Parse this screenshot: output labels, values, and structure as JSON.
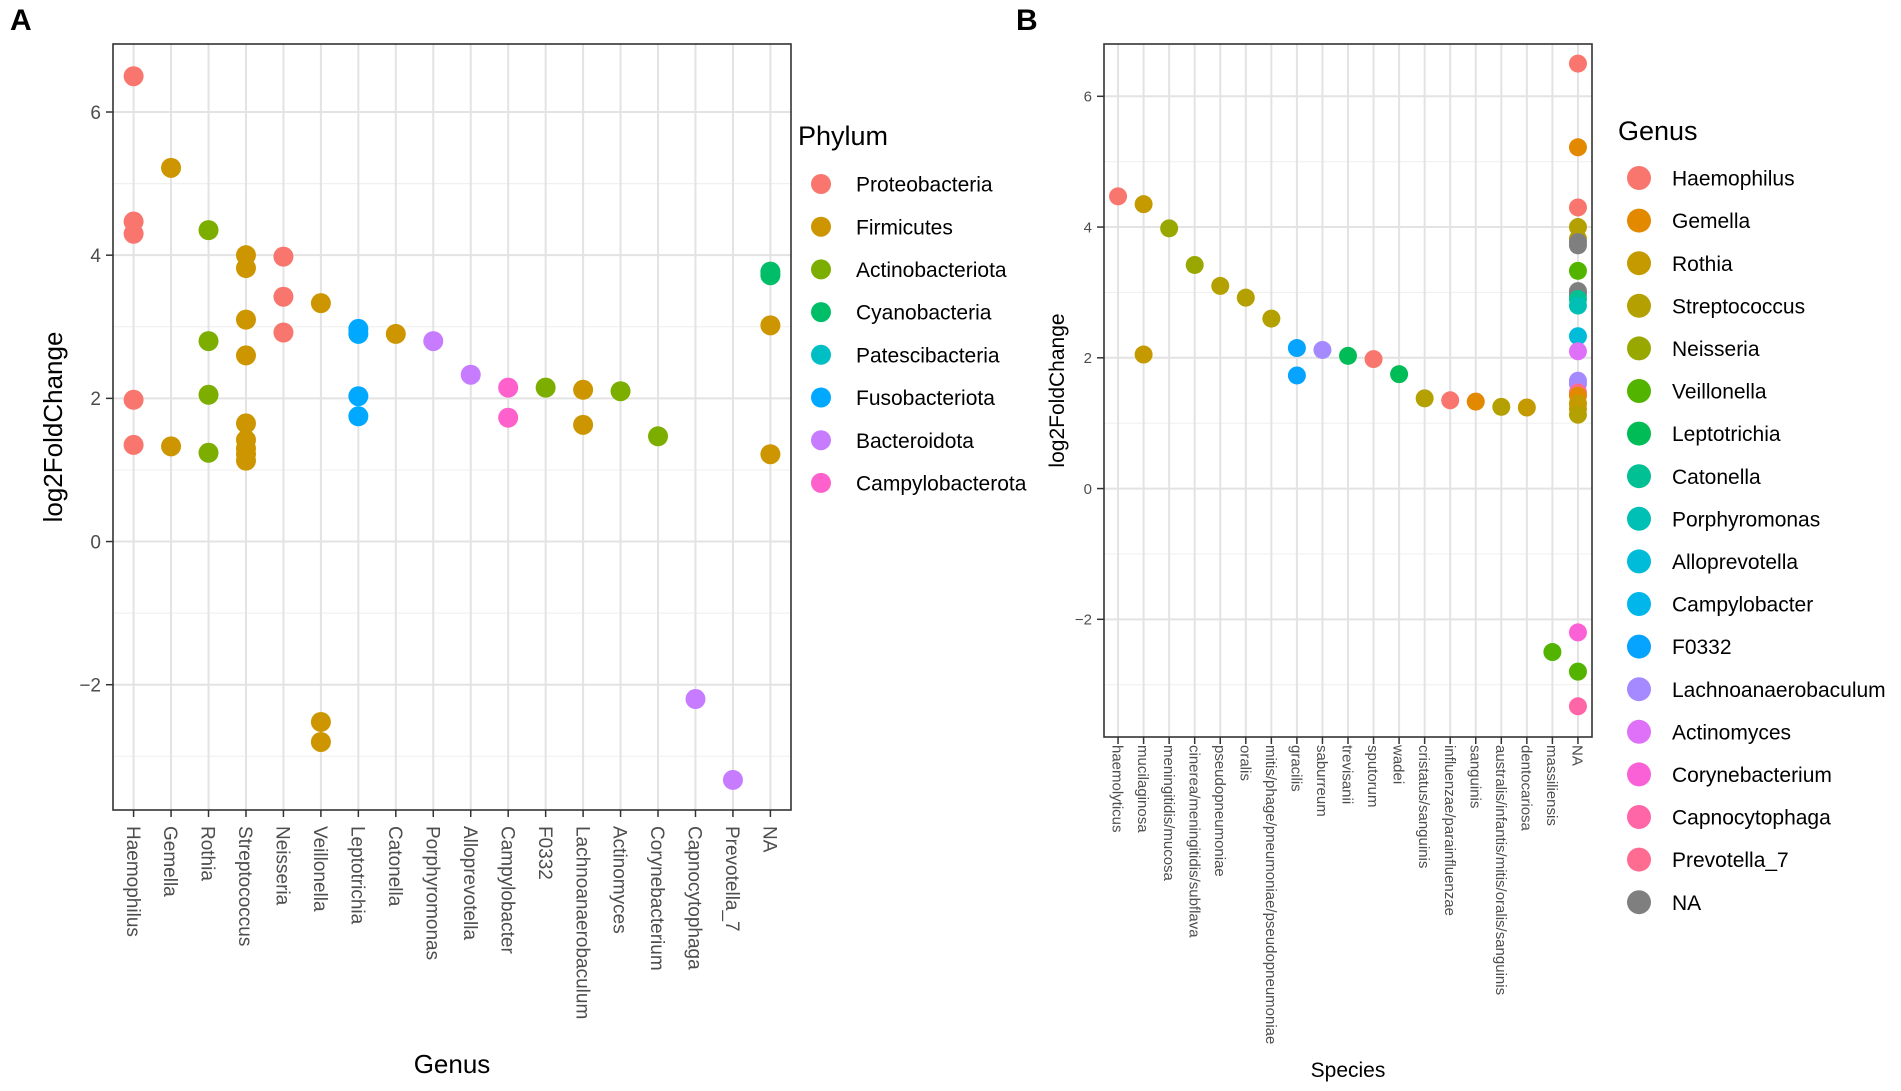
{
  "chart_data": [
    {
      "panel": "A",
      "type": "scatter",
      "xlabel": "Genus",
      "ylabel": "log2FoldChange",
      "ylim": [
        -3.75,
        6.95
      ],
      "yticks": [
        -2,
        0,
        2,
        4,
        6
      ],
      "ytick_labels": [
        "−2",
        "0",
        "2",
        "4",
        "6"
      ],
      "grid": true,
      "legend_position": "right",
      "legend_title": "Phylum",
      "categories": [
        "Haemophilus",
        "Gemella",
        "Rothia",
        "Streptococcus",
        "Neisseria",
        "Veillonella",
        "Leptotrichia",
        "Catonella",
        "Porphyromonas",
        "Alloprevotella",
        "Campylobacter",
        "F0332",
        "Lachnoanaerobaculum",
        "Actinomyces",
        "Corynebacterium",
        "Capnocytophaga",
        "Prevotella_7",
        "NA"
      ],
      "legend": [
        {
          "label": "Proteobacteria",
          "color": "#F8766D"
        },
        {
          "label": "Firmicutes",
          "color": "#CD9600"
        },
        {
          "label": "Actinobacteriota",
          "color": "#7CAE00"
        },
        {
          "label": "Cyanobacteria",
          "color": "#00BE67"
        },
        {
          "label": "Patescibacteria",
          "color": "#00BFC4"
        },
        {
          "label": "Fusobacteriota",
          "color": "#00A9FF"
        },
        {
          "label": "Bacteroidota",
          "color": "#C77CFF"
        },
        {
          "label": "Campylobacterota",
          "color": "#FF61CC"
        }
      ],
      "points": [
        {
          "x": "Haemophilus",
          "y": 6.5,
          "group": 0
        },
        {
          "x": "Haemophilus",
          "y": 4.47,
          "group": 0
        },
        {
          "x": "Haemophilus",
          "y": 4.3,
          "group": 0
        },
        {
          "x": "Haemophilus",
          "y": 1.98,
          "group": 0
        },
        {
          "x": "Haemophilus",
          "y": 1.35,
          "group": 0
        },
        {
          "x": "Gemella",
          "y": 5.22,
          "group": 1
        },
        {
          "x": "Gemella",
          "y": 1.33,
          "group": 1
        },
        {
          "x": "Rothia",
          "y": 4.35,
          "group": 2
        },
        {
          "x": "Rothia",
          "y": 2.8,
          "group": 2
        },
        {
          "x": "Rothia",
          "y": 2.05,
          "group": 2
        },
        {
          "x": "Rothia",
          "y": 1.24,
          "group": 2
        },
        {
          "x": "Streptococcus",
          "y": 4.0,
          "group": 1
        },
        {
          "x": "Streptococcus",
          "y": 3.82,
          "group": 1
        },
        {
          "x": "Streptococcus",
          "y": 3.1,
          "group": 1
        },
        {
          "x": "Streptococcus",
          "y": 2.6,
          "group": 1
        },
        {
          "x": "Streptococcus",
          "y": 1.65,
          "group": 1
        },
        {
          "x": "Streptococcus",
          "y": 1.42,
          "group": 1
        },
        {
          "x": "Streptococcus",
          "y": 1.3,
          "group": 1
        },
        {
          "x": "Streptococcus",
          "y": 1.22,
          "group": 1
        },
        {
          "x": "Streptococcus",
          "y": 1.13,
          "group": 1
        },
        {
          "x": "Neisseria",
          "y": 3.98,
          "group": 0
        },
        {
          "x": "Neisseria",
          "y": 3.42,
          "group": 0
        },
        {
          "x": "Neisseria",
          "y": 2.92,
          "group": 0
        },
        {
          "x": "Veillonella",
          "y": 3.33,
          "group": 1
        },
        {
          "x": "Veillonella",
          "y": -2.52,
          "group": 1
        },
        {
          "x": "Veillonella",
          "y": -2.8,
          "group": 1
        },
        {
          "x": "Leptotrichia",
          "y": 2.97,
          "group": 5
        },
        {
          "x": "Leptotrichia",
          "y": 2.9,
          "group": 5
        },
        {
          "x": "Leptotrichia",
          "y": 2.03,
          "group": 5
        },
        {
          "x": "Leptotrichia",
          "y": 1.75,
          "group": 5
        },
        {
          "x": "Catonella",
          "y": 2.9,
          "group": 1
        },
        {
          "x": "Porphyromonas",
          "y": 2.8,
          "group": 6
        },
        {
          "x": "Alloprevotella",
          "y": 2.33,
          "group": 6
        },
        {
          "x": "Campylobacter",
          "y": 2.15,
          "group": 7
        },
        {
          "x": "Campylobacter",
          "y": 1.73,
          "group": 7
        },
        {
          "x": "F0332",
          "y": 2.15,
          "group": 2
        },
        {
          "x": "Lachnoanaerobaculum",
          "y": 2.12,
          "group": 1
        },
        {
          "x": "Lachnoanaerobaculum",
          "y": 1.63,
          "group": 1
        },
        {
          "x": "Actinomyces",
          "y": 2.1,
          "group": 2
        },
        {
          "x": "Corynebacterium",
          "y": 1.47,
          "group": 2
        },
        {
          "x": "Capnocytophaga",
          "y": -2.2,
          "group": 6
        },
        {
          "x": "Prevotella_7",
          "y": -3.33,
          "group": 6
        },
        {
          "x": "NA",
          "y": 3.77,
          "group": 3
        },
        {
          "x": "NA",
          "y": 3.72,
          "group": 3
        },
        {
          "x": "NA",
          "y": 3.02,
          "group": 1
        },
        {
          "x": "NA",
          "y": 1.22,
          "group": 1
        }
      ]
    },
    {
      "panel": "B",
      "type": "scatter",
      "xlabel": "Species",
      "ylabel": "log2FoldChange",
      "ylim": [
        -3.8,
        6.8
      ],
      "yticks": [
        -2,
        0,
        2,
        4,
        6
      ],
      "ytick_labels": [
        "−2",
        "0",
        "2",
        "4",
        "6"
      ],
      "grid": true,
      "legend_position": "right",
      "legend_title": "Genus",
      "categories": [
        "haemolyticus",
        "mucilaginosa",
        "meningitidis/mucosa",
        "cinerea/meningitidis/subflava",
        "pseudopneumoniae",
        "oralis",
        "mitis/phage/pneumoniae/pseudopneumoniae",
        "gracilis",
        "saburreum",
        "trevisanii",
        "sputorum",
        "wadei",
        "cristatus/sanguinis",
        "influenzae/parainfluenzae",
        "sanguinis",
        "australis/infantis/mitis/oralis/sanguinis",
        "dentocariosa",
        "massiliensis",
        "NA"
      ],
      "legend": [
        {
          "label": "Haemophilus",
          "color": "#F8766D"
        },
        {
          "label": "Gemella",
          "color": "#E38900"
        },
        {
          "label": "Rothia",
          "color": "#C49A00"
        },
        {
          "label": "Streptococcus",
          "color": "#B4A000"
        },
        {
          "label": "Neisseria",
          "color": "#99A800"
        },
        {
          "label": "Veillonella",
          "color": "#53B400"
        },
        {
          "label": "Leptotrichia",
          "color": "#00BC56"
        },
        {
          "label": "Catonella",
          "color": "#00C094"
        },
        {
          "label": "Porphyromonas",
          "color": "#00BFB5"
        },
        {
          "label": "Alloprevotella",
          "color": "#00BCD8"
        },
        {
          "label": "Campylobacter",
          "color": "#00B6EB"
        },
        {
          "label": "F0332",
          "color": "#06A4FF"
        },
        {
          "label": "Lachnoanaerobaculum",
          "color": "#A58AFF"
        },
        {
          "label": "Actinomyces",
          "color": "#DF70F8"
        },
        {
          "label": "Corynebacterium",
          "color": "#FB61D7"
        },
        {
          "label": "Capnocytophaga",
          "color": "#FF66A8"
        },
        {
          "label": "Prevotella_7",
          "color": "#FF6C91"
        },
        {
          "label": "NA",
          "color": "#7F7F7F"
        }
      ],
      "points": [
        {
          "x": "haemolyticus",
          "y": 4.47,
          "group": 0
        },
        {
          "x": "mucilaginosa",
          "y": 4.35,
          "group": 2
        },
        {
          "x": "mucilaginosa",
          "y": 2.05,
          "group": 2
        },
        {
          "x": "meningitidis/mucosa",
          "y": 3.98,
          "group": 4
        },
        {
          "x": "cinerea/meningitidis/subflava",
          "y": 3.42,
          "group": 4
        },
        {
          "x": "pseudopneumoniae",
          "y": 3.1,
          "group": 3
        },
        {
          "x": "oralis",
          "y": 2.92,
          "group": 3
        },
        {
          "x": "mitis/phage/pneumoniae/pseudopneumoniae",
          "y": 2.6,
          "group": 3
        },
        {
          "x": "gracilis",
          "y": 2.15,
          "group": 11
        },
        {
          "x": "gracilis",
          "y": 1.73,
          "group": 11
        },
        {
          "x": "saburreum",
          "y": 2.12,
          "group": 12
        },
        {
          "x": "trevisanii",
          "y": 2.03,
          "group": 6
        },
        {
          "x": "sputorum",
          "y": 1.98,
          "group": 0
        },
        {
          "x": "wadei",
          "y": 1.75,
          "group": 6
        },
        {
          "x": "cristatus/sanguinis",
          "y": 1.38,
          "group": 3
        },
        {
          "x": "influenzae/parainfluenzae",
          "y": 1.35,
          "group": 0
        },
        {
          "x": "sanguinis",
          "y": 1.33,
          "group": 1
        },
        {
          "x": "australis/infantis/mitis/oralis/sanguinis",
          "y": 1.25,
          "group": 3
        },
        {
          "x": "dentocariosa",
          "y": 1.24,
          "group": 2
        },
        {
          "x": "massiliensis",
          "y": -2.5,
          "group": 5
        },
        {
          "x": "NA",
          "y": 6.5,
          "group": 0
        },
        {
          "x": "NA",
          "y": 5.22,
          "group": 1
        },
        {
          "x": "NA",
          "y": 4.3,
          "group": 0
        },
        {
          "x": "NA",
          "y": 4.0,
          "group": 3
        },
        {
          "x": "NA",
          "y": 3.82,
          "group": 3
        },
        {
          "x": "NA",
          "y": 3.77,
          "group": 17
        },
        {
          "x": "NA",
          "y": 3.72,
          "group": 17
        },
        {
          "x": "NA",
          "y": 3.33,
          "group": 5
        },
        {
          "x": "NA",
          "y": 3.02,
          "group": 17
        },
        {
          "x": "NA",
          "y": 2.97,
          "group": 17
        },
        {
          "x": "NA",
          "y": 2.9,
          "group": 7
        },
        {
          "x": "NA",
          "y": 2.8,
          "group": 8
        },
        {
          "x": "NA",
          "y": 2.33,
          "group": 9
        },
        {
          "x": "NA",
          "y": 2.1,
          "group": 13
        },
        {
          "x": "NA",
          "y": 1.65,
          "group": 12
        },
        {
          "x": "NA",
          "y": 1.6,
          "group": 12
        },
        {
          "x": "NA",
          "y": 1.47,
          "group": 16
        },
        {
          "x": "NA",
          "y": 1.42,
          "group": 1
        },
        {
          "x": "NA",
          "y": 1.3,
          "group": 2
        },
        {
          "x": "NA",
          "y": 1.22,
          "group": 2
        },
        {
          "x": "NA",
          "y": 1.13,
          "group": 3
        },
        {
          "x": "NA",
          "y": -2.2,
          "group": 14
        },
        {
          "x": "NA",
          "y": -2.8,
          "group": 5
        },
        {
          "x": "NA",
          "y": -3.33,
          "group": 15
        }
      ]
    }
  ]
}
